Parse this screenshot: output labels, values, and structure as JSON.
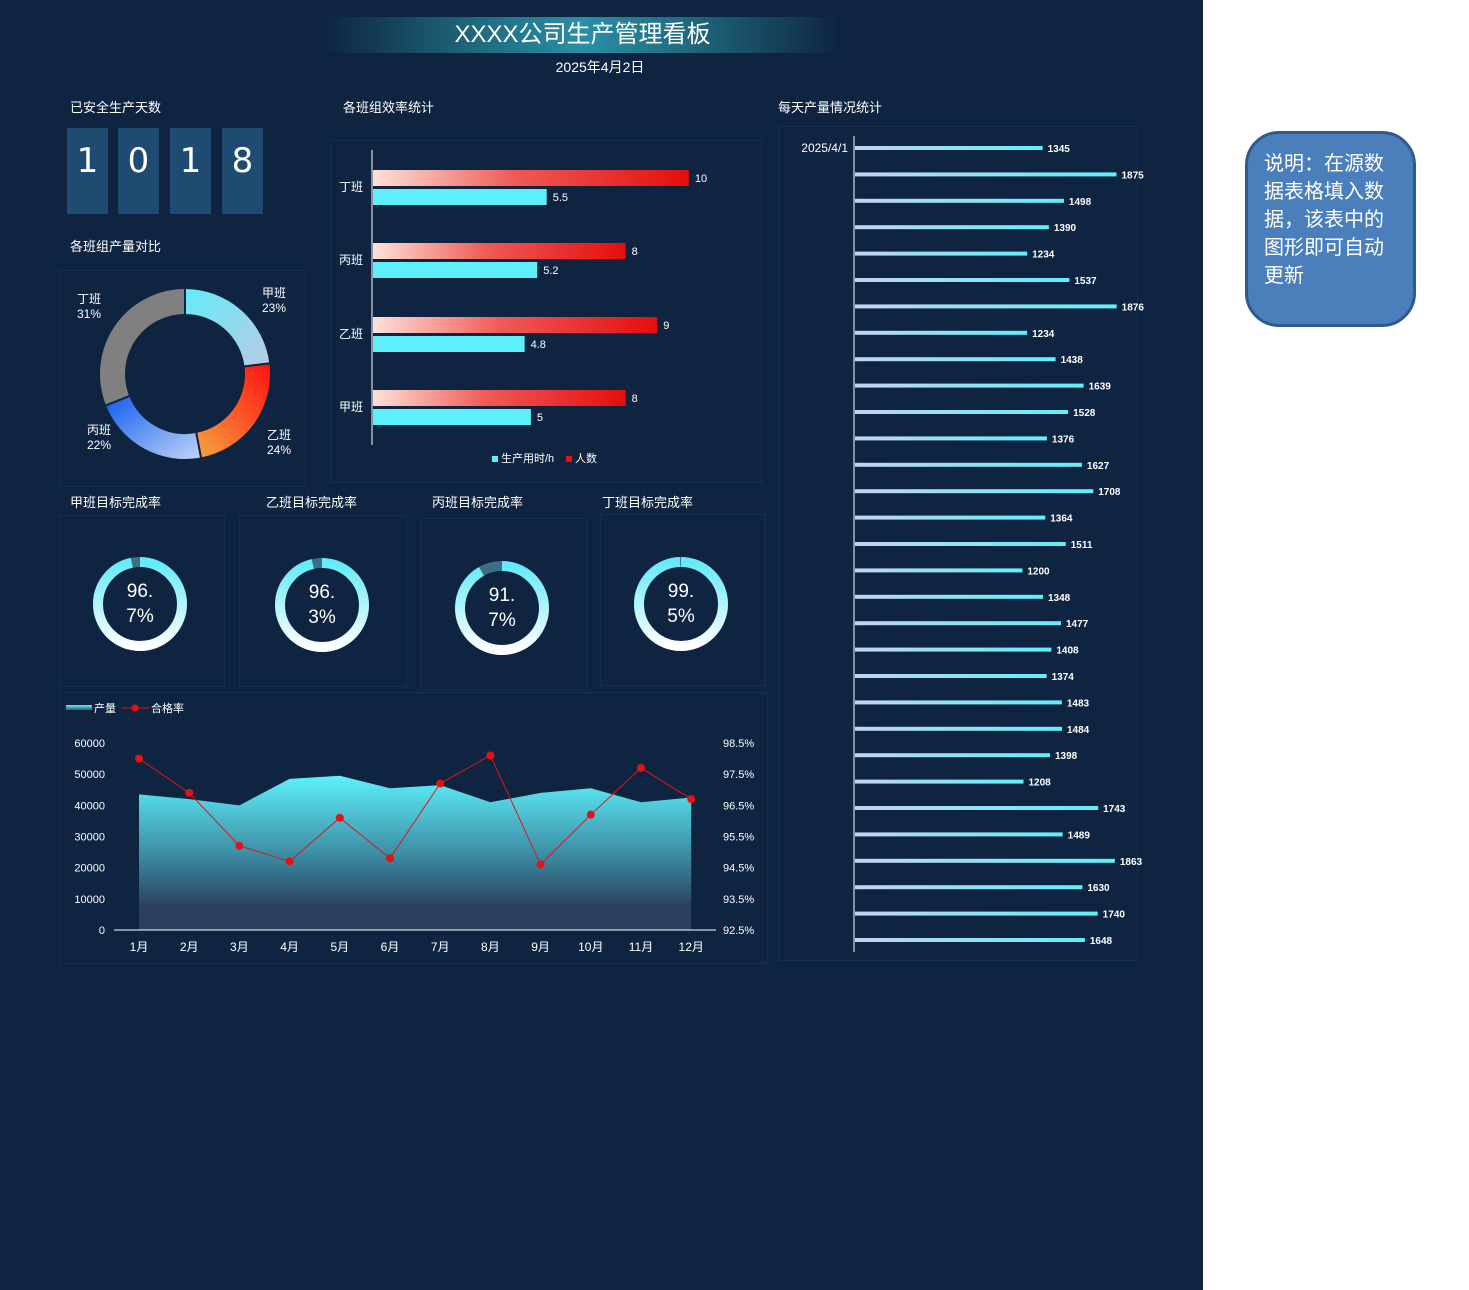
{
  "header": {
    "title": "XXXX公司生产管理看板",
    "date": "2025年4月2日"
  },
  "safe_days": {
    "title": "已安全生产天数",
    "digits": [
      "1",
      "0",
      "1",
      "8"
    ]
  },
  "efficiency": {
    "title": "各班组效率统计"
  },
  "output_share": {
    "title": "各班组产量对比"
  },
  "targets": {
    "titles": [
      "甲班目标完成率",
      "乙班目标完成率",
      "丙班目标完成率",
      "丁班目标完成率"
    ]
  },
  "daily": {
    "title": "每天产量情况统计"
  },
  "note": {
    "text": "说明：在源数据表格填入数据，该表中的图形即可自动更新"
  },
  "colors": {
    "background": "#0f2441",
    "cyan": "#5ef0fa",
    "red": "#e41212",
    "note_bg": "#4b7fbc"
  },
  "chart_data": [
    {
      "id": "efficiency",
      "type": "bar",
      "orientation": "horizontal",
      "categories": [
        "丁班",
        "丙班",
        "乙班",
        "甲班"
      ],
      "series": [
        {
          "name": "人数",
          "values": [
            10,
            8,
            9,
            8
          ],
          "color": "#e41212"
        },
        {
          "name": "生产用时/h",
          "values": [
            5.5,
            5.2,
            4.8,
            5
          ],
          "color": "#5ef0fa"
        }
      ],
      "xlim": [
        0,
        12
      ]
    },
    {
      "id": "output_share",
      "type": "pie",
      "donut": true,
      "slices": [
        {
          "label": "甲班",
          "value": 23,
          "pct": "23%",
          "color": "#76e6f5"
        },
        {
          "label": "乙班",
          "value": 24,
          "pct": "24%",
          "color": "#f5612a"
        },
        {
          "label": "丙班",
          "value": 22,
          "pct": "22%",
          "color": "#3f7bf0"
        },
        {
          "label": "丁班",
          "value": 31,
          "pct": "31%",
          "color": "#808080"
        }
      ]
    },
    {
      "id": "targets",
      "type": "pie",
      "gauges": [
        {
          "label": "甲班",
          "value": 96.7,
          "text_top": "96.",
          "text_bottom": "7%"
        },
        {
          "label": "乙班",
          "value": 96.3,
          "text_top": "96.",
          "text_bottom": "3%"
        },
        {
          "label": "丙班",
          "value": 91.7,
          "text_top": "91.",
          "text_bottom": "7%"
        },
        {
          "label": "丁班",
          "value": 99.5,
          "text_top": "99.",
          "text_bottom": "5%"
        }
      ]
    },
    {
      "id": "monthly",
      "type": "area",
      "categories": [
        "1月",
        "2月",
        "3月",
        "4月",
        "5月",
        "6月",
        "7月",
        "8月",
        "9月",
        "10月",
        "11月",
        "12月"
      ],
      "series": [
        {
          "name": "产量",
          "type": "area",
          "axis": "left",
          "values": [
            43500,
            42000,
            40000,
            48500,
            49500,
            45500,
            46500,
            41000,
            44000,
            45500,
            41000,
            42500
          ]
        },
        {
          "name": "合格率",
          "type": "line",
          "axis": "right",
          "values": [
            98.0,
            96.9,
            95.2,
            94.7,
            96.1,
            94.8,
            97.2,
            98.1,
            94.6,
            96.2,
            97.7,
            96.7
          ]
        }
      ],
      "y_left": {
        "ticks": [
          "0",
          "10000",
          "20000",
          "30000",
          "40000",
          "50000",
          "60000"
        ],
        "range": [
          0,
          60000
        ]
      },
      "y_right": {
        "ticks": [
          "92.5%",
          "93.5%",
          "94.5%",
          "95.5%",
          "96.5%",
          "97.5%",
          "98.5%"
        ],
        "range": [
          92.5,
          98.5
        ]
      },
      "legend": "top-left"
    },
    {
      "id": "daily",
      "type": "bar",
      "orientation": "horizontal",
      "first_label": "2025/4/1",
      "values": [
        1345,
        1875,
        1498,
        1390,
        1234,
        1537,
        1876,
        1234,
        1438,
        1639,
        1528,
        1376,
        1627,
        1708,
        1364,
        1511,
        1200,
        1348,
        1477,
        1408,
        1374,
        1483,
        1484,
        1398,
        1208,
        1743,
        1489,
        1863,
        1630,
        1740,
        1648
      ],
      "xlim": [
        0,
        1900
      ]
    }
  ]
}
